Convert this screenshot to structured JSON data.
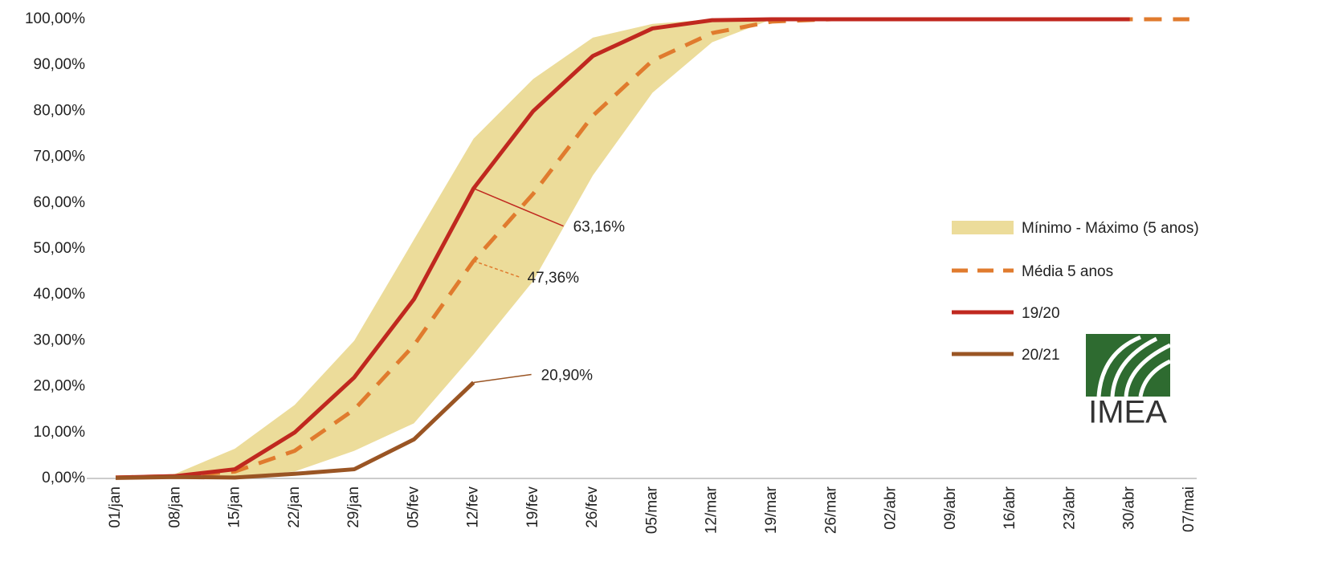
{
  "chart_data": {
    "type": "line",
    "categories": [
      "01/jan",
      "08/jan",
      "15/jan",
      "22/jan",
      "29/jan",
      "05/fev",
      "12/fev",
      "19/fev",
      "26/fev",
      "05/mar",
      "12/mar",
      "19/mar",
      "26/mar",
      "02/abr",
      "09/abr",
      "16/abr",
      "23/abr",
      "30/abr",
      "07/mai"
    ],
    "ylim": [
      0,
      100
    ],
    "yticks": [
      {
        "value": 0,
        "label": "0,00%"
      },
      {
        "value": 10,
        "label": "10,00%"
      },
      {
        "value": 20,
        "label": "20,00%"
      },
      {
        "value": 30,
        "label": "30,00%"
      },
      {
        "value": 40,
        "label": "40,00%"
      },
      {
        "value": 50,
        "label": "50,00%"
      },
      {
        "value": 60,
        "label": "60,00%"
      },
      {
        "value": 70,
        "label": "70,00%"
      },
      {
        "value": 80,
        "label": "80,00%"
      },
      {
        "value": 90,
        "label": "90,00%"
      },
      {
        "value": 100,
        "label": "100,00%"
      }
    ],
    "band": {
      "name": "Mínimo - Máximo (5 anos)",
      "color": "#ecdc9a",
      "upper": [
        0.3,
        1,
        6.5,
        16,
        30,
        52,
        74,
        87,
        96,
        99,
        100,
        100,
        100,
        100,
        100,
        100,
        100,
        100,
        null
      ],
      "lower": [
        0,
        0,
        0.3,
        1.5,
        6,
        12,
        27,
        43,
        66,
        84,
        95,
        100,
        100,
        100,
        100,
        100,
        100,
        100,
        null
      ]
    },
    "series": [
      {
        "name": "Média 5 anos",
        "color": "#e07b2e",
        "dash": true,
        "values": [
          0.2,
          0.5,
          1.5,
          6,
          15,
          29,
          47.36,
          62,
          79,
          91,
          97,
          99.5,
          100,
          100,
          100,
          100,
          100,
          100,
          100
        ],
        "value_labels": [
          null,
          null,
          null,
          null,
          null,
          null,
          "47,36%",
          null,
          null,
          null,
          null,
          null,
          null,
          null,
          null,
          null,
          null,
          null,
          null
        ]
      },
      {
        "name": "19/20",
        "color": "#c0281f",
        "dash": false,
        "values": [
          0.2,
          0.5,
          2,
          10,
          22,
          39,
          63.16,
          80,
          92,
          98,
          99.8,
          100,
          100,
          100,
          100,
          100,
          100,
          100,
          null
        ],
        "value_labels": [
          null,
          null,
          null,
          null,
          null,
          null,
          "63,16%",
          null,
          null,
          null,
          null,
          null,
          null,
          null,
          null,
          null,
          null,
          null,
          null
        ]
      },
      {
        "name": "20/21",
        "color": "#9a5524",
        "dash": false,
        "values": [
          0.1,
          0.3,
          0.2,
          1,
          2,
          8.5,
          20.9,
          null,
          null,
          null,
          null,
          null,
          null,
          null,
          null,
          null,
          null,
          null,
          null
        ],
        "value_labels": [
          null,
          null,
          null,
          null,
          null,
          null,
          "20,90%",
          null,
          null,
          null,
          null,
          null,
          null,
          null,
          null,
          null,
          null,
          null,
          null
        ]
      }
    ],
    "logo_text": "IMEA"
  }
}
